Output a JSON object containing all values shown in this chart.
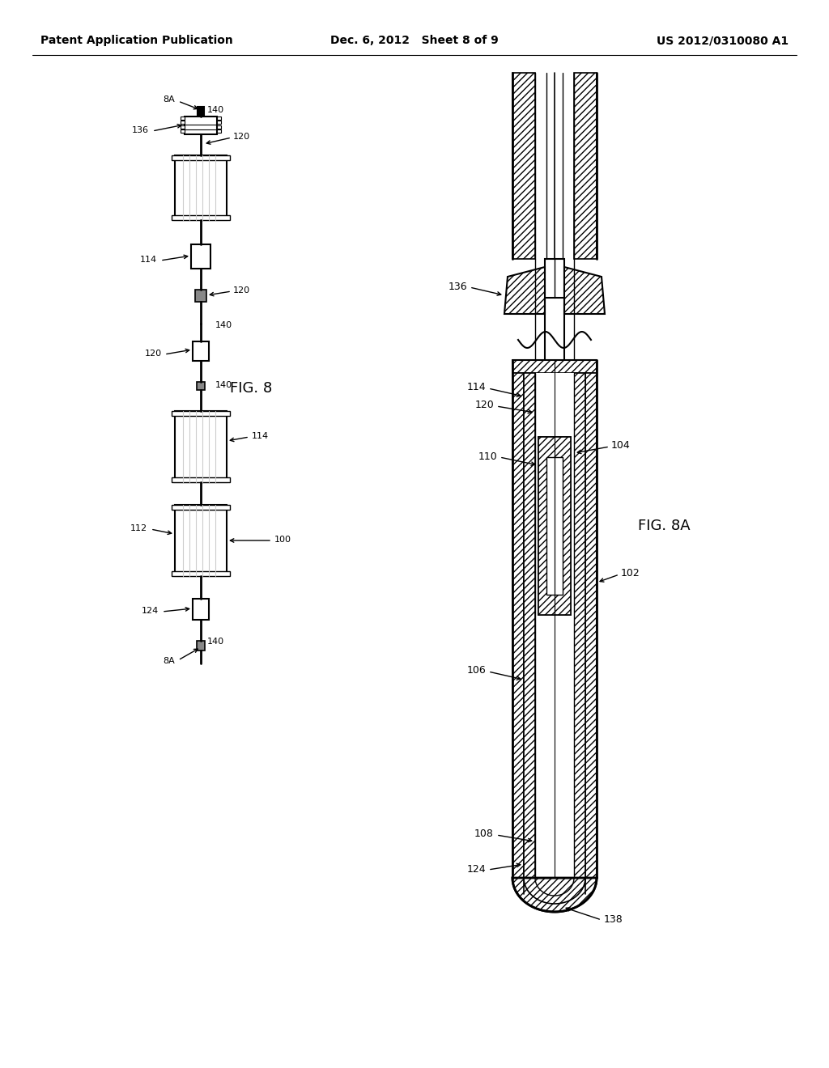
{
  "bg_color": "#ffffff",
  "header_left": "Patent Application Publication",
  "header_mid": "Dec. 6, 2012   Sheet 8 of 9",
  "header_right": "US 2012/0310080 A1",
  "fig8_label": "FIG. 8",
  "fig8a_label": "FIG. 8A",
  "line_color": "#000000"
}
